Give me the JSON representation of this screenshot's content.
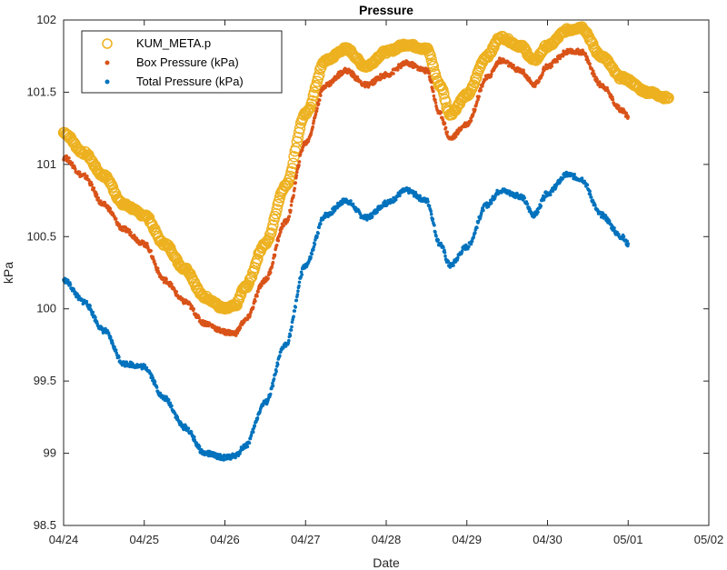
{
  "chart_data": {
    "type": "scatter",
    "title": "Pressure",
    "xlabel": "Date",
    "ylabel": "kPa",
    "xlim": [
      "04/24",
      "05/02"
    ],
    "ylim": [
      98.5,
      102
    ],
    "x_ticks": [
      "04/24",
      "04/25",
      "04/26",
      "04/27",
      "04/28",
      "04/29",
      "04/30",
      "05/01",
      "05/02"
    ],
    "y_ticks": [
      "98.5",
      "99",
      "99.5",
      "100",
      "100.5",
      "101",
      "101.5",
      "102"
    ],
    "grid": false,
    "legend_position": "top-left",
    "series": [
      {
        "name": "KUM_META.p",
        "marker": "circle",
        "color": "#EDB120",
        "points": [
          [
            "04/24 00:00",
            101.22
          ],
          [
            "04/24 06:00",
            101.08
          ],
          [
            "04/24 12:00",
            100.92
          ],
          [
            "04/24 18:00",
            100.72
          ],
          [
            "04/25 00:00",
            100.65
          ],
          [
            "04/25 06:00",
            100.45
          ],
          [
            "04/25 12:00",
            100.28
          ],
          [
            "04/25 18:00",
            100.08
          ],
          [
            "04/26 00:00",
            100.0
          ],
          [
            "04/26 03:00",
            100.02
          ],
          [
            "04/26 06:00",
            100.15
          ],
          [
            "04/26 12:00",
            100.45
          ],
          [
            "04/26 18:00",
            100.85
          ],
          [
            "04/27 00:00",
            101.35
          ],
          [
            "04/27 06:00",
            101.72
          ],
          [
            "04/27 12:00",
            101.8
          ],
          [
            "04/27 18:00",
            101.68
          ],
          [
            "04/28 00:00",
            101.78
          ],
          [
            "04/28 06:00",
            101.83
          ],
          [
            "04/28 12:00",
            101.8
          ],
          [
            "04/28 16:00",
            101.55
          ],
          [
            "04/28 19:00",
            101.35
          ],
          [
            "04/29 00:00",
            101.48
          ],
          [
            "04/29 06:00",
            101.75
          ],
          [
            "04/29 10:00",
            101.88
          ],
          [
            "04/29 16:00",
            101.82
          ],
          [
            "04/29 20:00",
            101.72
          ],
          [
            "04/30 00:00",
            101.82
          ],
          [
            "04/30 06:00",
            101.93
          ],
          [
            "04/30 10:00",
            101.95
          ],
          [
            "04/30 16:00",
            101.75
          ],
          [
            "04/30 22:00",
            101.6
          ],
          [
            "05/01 06:00",
            101.5
          ],
          [
            "05/01 12:00",
            101.46
          ]
        ]
      },
      {
        "name": "Box Pressure (kPa)",
        "marker": "dot",
        "color": "#D95319",
        "points": [
          [
            "04/24 00:00",
            101.05
          ],
          [
            "04/24 06:00",
            100.92
          ],
          [
            "04/24 12:00",
            100.72
          ],
          [
            "04/24 18:00",
            100.55
          ],
          [
            "04/25 00:00",
            100.45
          ],
          [
            "04/25 06:00",
            100.2
          ],
          [
            "04/25 12:00",
            100.05
          ],
          [
            "04/25 18:00",
            99.9
          ],
          [
            "04/26 00:00",
            99.84
          ],
          [
            "04/26 03:00",
            99.83
          ],
          [
            "04/26 06:00",
            99.92
          ],
          [
            "04/26 12:00",
            100.2
          ],
          [
            "04/26 18:00",
            100.6
          ],
          [
            "04/27 00:00",
            101.15
          ],
          [
            "04/27 06:00",
            101.55
          ],
          [
            "04/27 12:00",
            101.65
          ],
          [
            "04/27 18:00",
            101.55
          ],
          [
            "04/28 00:00",
            101.62
          ],
          [
            "04/28 06:00",
            101.7
          ],
          [
            "04/28 12:00",
            101.65
          ],
          [
            "04/28 16:00",
            101.35
          ],
          [
            "04/28 19:00",
            101.18
          ],
          [
            "04/29 00:00",
            101.28
          ],
          [
            "04/29 06:00",
            101.6
          ],
          [
            "04/29 10:00",
            101.72
          ],
          [
            "04/29 16:00",
            101.65
          ],
          [
            "04/29 20:00",
            101.55
          ],
          [
            "04/30 00:00",
            101.68
          ],
          [
            "04/30 06:00",
            101.78
          ],
          [
            "04/30 10:00",
            101.78
          ],
          [
            "04/30 16:00",
            101.55
          ],
          [
            "04/30 22:00",
            101.38
          ],
          [
            "05/01 00:00",
            101.33
          ]
        ]
      },
      {
        "name": "Total Pressure (kPa)",
        "marker": "dot",
        "color": "#0072BD",
        "points": [
          [
            "04/24 00:00",
            100.2
          ],
          [
            "04/24 06:00",
            100.05
          ],
          [
            "04/24 12:00",
            99.85
          ],
          [
            "04/24 18:00",
            99.62
          ],
          [
            "04/25 00:00",
            99.6
          ],
          [
            "04/25 06:00",
            99.38
          ],
          [
            "04/25 12:00",
            99.18
          ],
          [
            "04/25 18:00",
            99.0
          ],
          [
            "04/26 00:00",
            98.97
          ],
          [
            "04/26 03:00",
            98.98
          ],
          [
            "04/26 06:00",
            99.05
          ],
          [
            "04/26 12:00",
            99.35
          ],
          [
            "04/26 18:00",
            99.75
          ],
          [
            "04/27 00:00",
            100.3
          ],
          [
            "04/27 06:00",
            100.65
          ],
          [
            "04/27 12:00",
            100.75
          ],
          [
            "04/27 18:00",
            100.63
          ],
          [
            "04/28 00:00",
            100.73
          ],
          [
            "04/28 06:00",
            100.82
          ],
          [
            "04/28 12:00",
            100.75
          ],
          [
            "04/28 16:00",
            100.45
          ],
          [
            "04/28 19:00",
            100.3
          ],
          [
            "04/29 00:00",
            100.43
          ],
          [
            "04/29 06:00",
            100.72
          ],
          [
            "04/29 10:00",
            100.82
          ],
          [
            "04/29 16:00",
            100.78
          ],
          [
            "04/29 20:00",
            100.65
          ],
          [
            "04/30 00:00",
            100.8
          ],
          [
            "04/30 06:00",
            100.93
          ],
          [
            "04/30 10:00",
            100.9
          ],
          [
            "04/30 16:00",
            100.65
          ],
          [
            "04/30 22:00",
            100.5
          ],
          [
            "05/01 00:00",
            100.45
          ]
        ]
      }
    ]
  }
}
